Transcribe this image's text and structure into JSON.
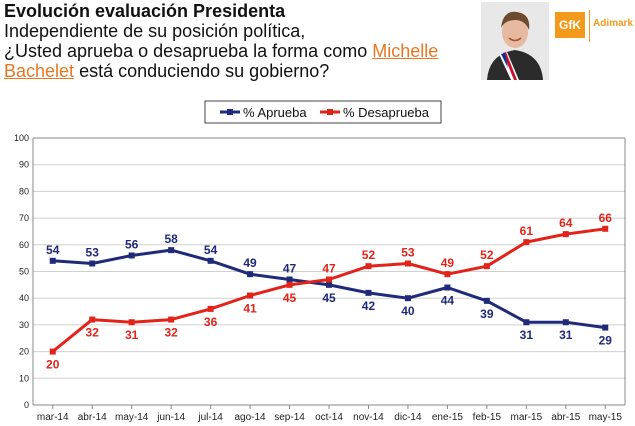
{
  "header": {
    "title": "Evolución evaluación Presidenta",
    "question_line1": "Independiente de su posición política,",
    "question_line2_pre": "¿Usted aprueba o desaprueba la forma como ",
    "question_highlight_1": "Michelle",
    "question_highlight_2": "Bachelet",
    "question_line3_post": " está conduciendo su gobierno?"
  },
  "logo": {
    "brand": "GfK",
    "name": "Adimark"
  },
  "colors": {
    "aprueba": "#1f2a7a",
    "desaprueba": "#e2231a",
    "grid": "#d0d0d0",
    "accent": "#e87722"
  },
  "chart_data": {
    "type": "line",
    "title": "Evolución evaluación Presidenta",
    "categories": [
      "mar-14",
      "abr-14",
      "may-14",
      "jun-14",
      "jul-14",
      "ago-14",
      "sep-14",
      "oct-14",
      "nov-14",
      "dic-14",
      "ene-15",
      "feb-15",
      "mar-15",
      "abr-15",
      "may-15"
    ],
    "series": [
      {
        "name": "% Aprueba",
        "color": "#1f2a7a",
        "values": [
          54,
          53,
          56,
          58,
          54,
          49,
          47,
          45,
          42,
          40,
          44,
          39,
          31,
          31,
          29
        ]
      },
      {
        "name": "% Desaprueba",
        "color": "#e2231a",
        "values": [
          20,
          32,
          31,
          32,
          36,
          41,
          45,
          47,
          52,
          53,
          49,
          52,
          61,
          64,
          66
        ]
      }
    ],
    "ylim": [
      0,
      100
    ],
    "yticks": [
      0,
      10,
      20,
      30,
      40,
      50,
      60,
      70,
      80,
      90,
      100
    ],
    "xlabel": "",
    "ylabel": "",
    "grid": true,
    "legend": "top-center"
  }
}
